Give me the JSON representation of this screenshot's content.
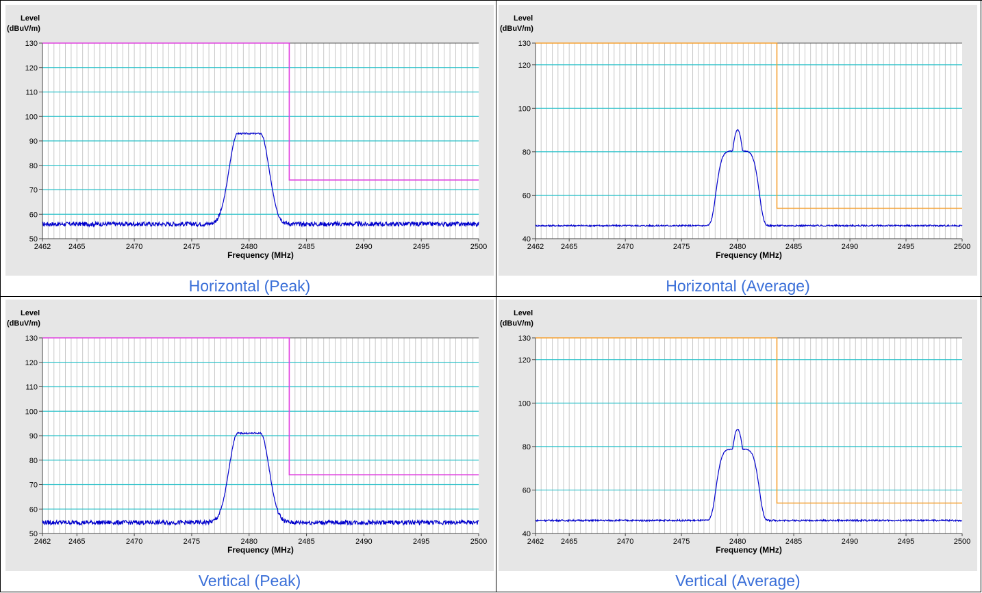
{
  "chart_data": [
    {
      "type": "line",
      "caption": "Horizontal (Peak)",
      "ylabel_line1": "Level",
      "ylabel_line2": "(dBuV/m)",
      "xlabel": "Frequency (MHz)",
      "xlim": [
        2462,
        2500
      ],
      "ylim": [
        50,
        130
      ],
      "yticks": [
        50,
        60,
        70,
        80,
        90,
        100,
        110,
        120,
        130
      ],
      "xticks": [
        2462,
        2465,
        2470,
        2475,
        2480,
        2485,
        2490,
        2495,
        2500
      ],
      "grid": true,
      "limit_line": {
        "color": "#e040e0",
        "points": [
          [
            2462,
            130
          ],
          [
            2483.5,
            130
          ],
          [
            2483.5,
            74
          ],
          [
            2500,
            74
          ]
        ]
      },
      "trace": {
        "color": "#0000cc",
        "noise_floor": 56,
        "peak": 93,
        "shape": "flat",
        "center": 2480
      }
    },
    {
      "type": "line",
      "caption": "Horizontal (Average)",
      "ylabel_line1": "Level",
      "ylabel_line2": "(dBuV/m)",
      "xlabel": "Frequency (MHz)",
      "xlim": [
        2462,
        2500
      ],
      "ylim": [
        40,
        130
      ],
      "yticks": [
        40,
        60,
        80,
        100,
        120,
        130
      ],
      "xticks": [
        2462,
        2465,
        2470,
        2475,
        2480,
        2485,
        2490,
        2495,
        2500
      ],
      "grid": true,
      "limit_line": {
        "color": "#f5a030",
        "points": [
          [
            2462,
            130
          ],
          [
            2483.5,
            130
          ],
          [
            2483.5,
            54
          ],
          [
            2500,
            54
          ]
        ]
      },
      "trace": {
        "color": "#0000cc",
        "noise_floor": 46,
        "peak": 90,
        "shape": "pointed",
        "center": 2480
      }
    },
    {
      "type": "line",
      "caption": "Vertical (Peak)",
      "ylabel_line1": "Level",
      "ylabel_line2": "(dBuV/m)",
      "xlabel": "Frequency (MHz)",
      "xlim": [
        2462,
        2500
      ],
      "ylim": [
        50,
        130
      ],
      "yticks": [
        50,
        60,
        70,
        80,
        90,
        100,
        110,
        120,
        130
      ],
      "xticks": [
        2462,
        2465,
        2470,
        2475,
        2480,
        2485,
        2490,
        2495,
        2500
      ],
      "grid": true,
      "limit_line": {
        "color": "#e040e0",
        "points": [
          [
            2462,
            130
          ],
          [
            2483.5,
            130
          ],
          [
            2483.5,
            74
          ],
          [
            2500,
            74
          ]
        ]
      },
      "trace": {
        "color": "#0000cc",
        "noise_floor": 54.5,
        "peak": 91,
        "shape": "flat",
        "center": 2480
      }
    },
    {
      "type": "line",
      "caption": "Vertical (Average)",
      "ylabel_line1": "Level",
      "ylabel_line2": "(dBuV/m)",
      "xlabel": "Frequency (MHz)",
      "xlim": [
        2462,
        2500
      ],
      "ylim": [
        40,
        130
      ],
      "yticks": [
        40,
        60,
        80,
        100,
        120,
        130
      ],
      "xticks": [
        2462,
        2465,
        2470,
        2475,
        2480,
        2485,
        2490,
        2495,
        2500
      ],
      "grid": true,
      "limit_line": {
        "color": "#f5a030",
        "points": [
          [
            2462,
            130
          ],
          [
            2483.5,
            130
          ],
          [
            2483.5,
            54
          ],
          [
            2500,
            54
          ]
        ]
      },
      "trace": {
        "color": "#0000cc",
        "noise_floor": 46,
        "peak": 88,
        "shape": "pointed",
        "center": 2480
      }
    }
  ]
}
